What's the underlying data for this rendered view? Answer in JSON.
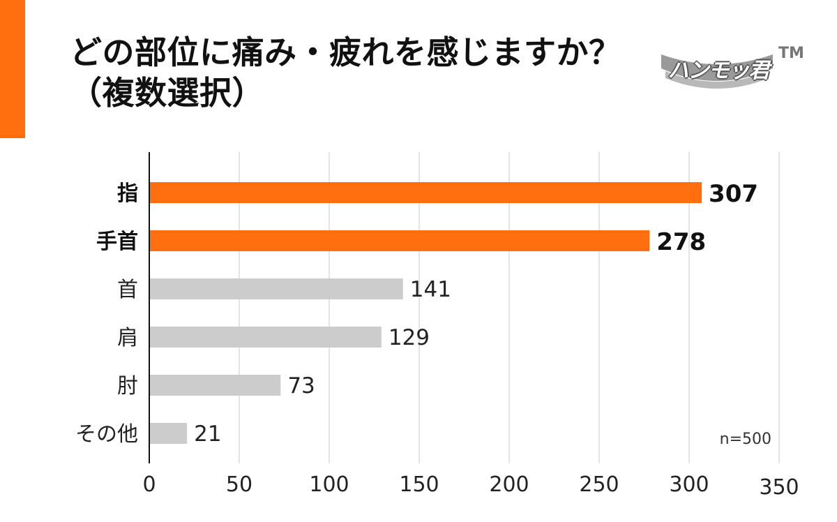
{
  "header": {
    "title_line1": "どの部位に痛み・疲れを感じますか？",
    "title_line2": "（複数選択）",
    "accent_color": "#FF6F0F"
  },
  "logo": {
    "text": "ハンモッ君",
    "tm": "TM"
  },
  "chart_data": {
    "type": "bar",
    "orientation": "horizontal",
    "title": "どの部位に痛み・疲れを感じますか？（複数選択）",
    "categories": [
      "指",
      "手首",
      "首",
      "肩",
      "肘",
      "その他"
    ],
    "values": [
      307,
      278,
      141,
      129,
      73,
      21
    ],
    "highlight": [
      true,
      true,
      false,
      false,
      false,
      false
    ],
    "highlight_color": "#FF6F0F",
    "base_color": "#CCCCCC",
    "xlim": [
      0,
      350
    ],
    "xticks": [
      0,
      50,
      100,
      150,
      200,
      250,
      300,
      350
    ],
    "grid": true,
    "xlabel": "",
    "ylabel": "",
    "annotation": "n=500"
  }
}
